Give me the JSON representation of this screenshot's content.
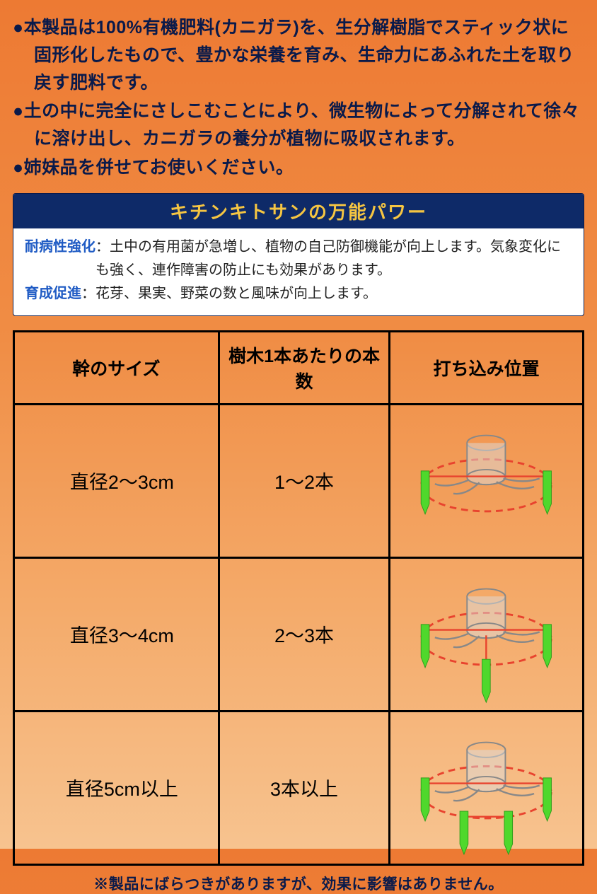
{
  "bullets": [
    "●本製品は100%有機肥料(カニガラ)を、生分解樹脂でスティック状に固形化したもので、豊かな栄養を育み、生命力にあふれた土を取り戻す肥料です。",
    "●土の中に完全にさしこむことにより、微生物によって分解されて徐々に溶け出し、カニガラの養分が植物に吸収されます。",
    "●姉妹品を併せてお使いください。"
  ],
  "infobox": {
    "header": "キチンキトサンの万能パワー",
    "rows": [
      {
        "label": "耐病性強化",
        "text": "：土中の有用菌が急増し、植物の自己防御機能が向上します。気象変化にも強く、連作障害の防止にも効果があります。"
      },
      {
        "label": "育成促進",
        "text": "：花芽、果実、野菜の数と風味が向上します。"
      }
    ]
  },
  "table": {
    "headers": [
      "幹のサイズ",
      "樹木1本あたりの本数",
      "打ち込み位置"
    ],
    "rows": [
      {
        "size": "直径2〜3cm",
        "count": "1〜2本",
        "stakes": 2
      },
      {
        "size": "直径3〜4cm",
        "count": "2〜3本",
        "stakes": 3
      },
      {
        "size": "直径5cm以上",
        "count": "3本以上",
        "stakes": 4
      }
    ]
  },
  "footnote": "※製品にばらつきがありますが、効果に影響はありません。",
  "colors": {
    "stake": "#4fd82c",
    "stakeDark": "#2e9e1b",
    "circle": "#e8432e",
    "stump": "#b8b8b8",
    "stumpLine": "#888888"
  }
}
